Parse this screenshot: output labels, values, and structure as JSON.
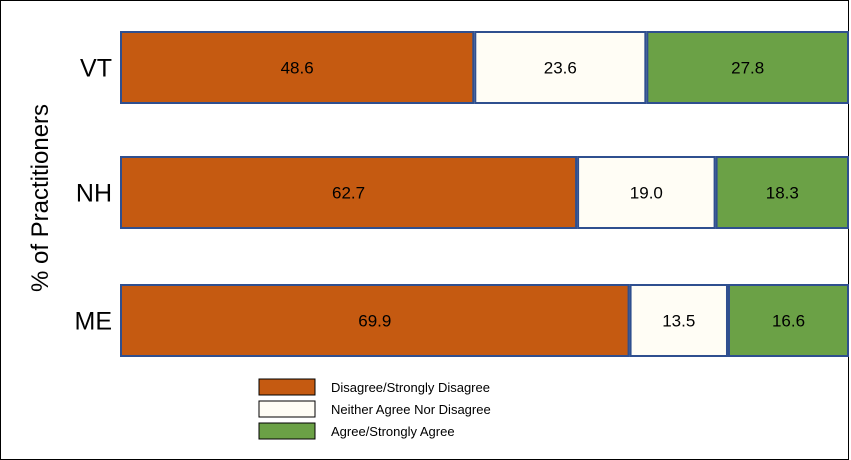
{
  "chart_data": {
    "type": "bar",
    "orientation": "horizontal",
    "stacked": true,
    "percent_stacked": true,
    "ylabel": "% of Practitioners",
    "xlabel": "",
    "title": "",
    "categories": [
      "VT",
      "NH",
      "ME"
    ],
    "series": [
      {
        "name": "Disagree/Strongly  Disagree",
        "color": "#c55a11",
        "values": [
          48.6,
          62.7,
          69.9
        ],
        "labels": [
          "48.6",
          "62.7",
          "69.9"
        ]
      },
      {
        "name": "Neither Agree Nor Disagree",
        "color": "#fffdf5",
        "values": [
          23.6,
          19.0,
          13.5
        ],
        "labels": [
          "23.6",
          "19.0",
          "13.5"
        ]
      },
      {
        "name": "Agree/Strongly Agree",
        "color": "#6ba146",
        "values": [
          27.8,
          18.3,
          16.6
        ],
        "labels": [
          "27.8",
          "18.3",
          "16.6"
        ]
      }
    ],
    "xlim": [
      0,
      100
    ],
    "grid": false,
    "legend_position": "bottom",
    "bar_border_color": "#2f4f8f"
  }
}
